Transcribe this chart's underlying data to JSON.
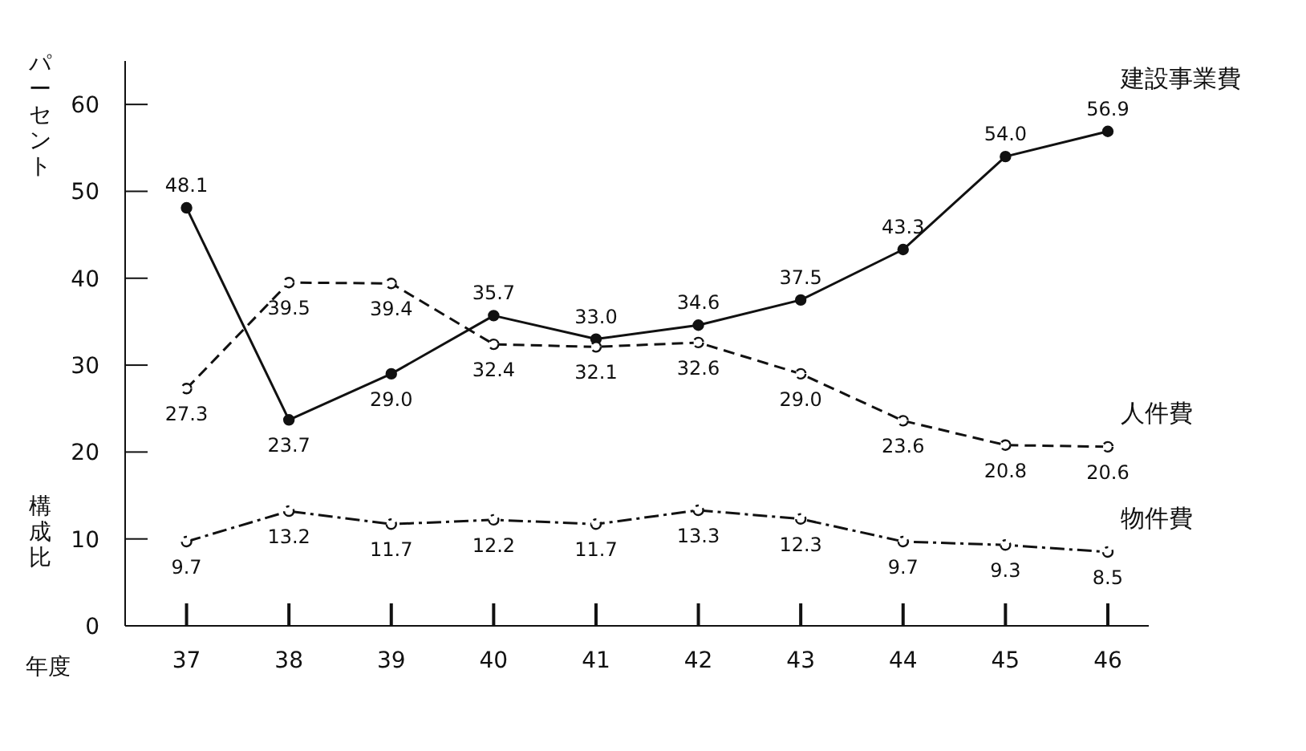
{
  "chart_data": {
    "type": "line",
    "ylabel": "構成比",
    "xlabel": "年度",
    "annotations": [
      "パーセント"
    ],
    "categories": [
      "37",
      "38",
      "39",
      "40",
      "41",
      "42",
      "43",
      "44",
      "45",
      "46"
    ],
    "series": [
      {
        "name": "建設事業費",
        "color": "#111111",
        "line_style": "solid",
        "values": [
          48.1,
          23.7,
          29.0,
          35.7,
          33.0,
          34.6,
          37.5,
          43.3,
          54.0,
          56.9
        ],
        "value_labels": [
          "48.1",
          "23.7",
          "29.0",
          "35.7",
          "33.0",
          "34.6",
          "37.5",
          "43.3",
          "54.0",
          "56.9"
        ]
      },
      {
        "name": "人件費",
        "color": "#111111",
        "line_style": "dashed",
        "values": [
          27.3,
          39.5,
          39.4,
          32.4,
          32.1,
          32.6,
          29.0,
          23.6,
          20.8,
          20.6
        ],
        "value_labels": [
          "27.3",
          "39.5",
          "39.4",
          "32.4",
          "32.1",
          "32.6",
          "29.0",
          "23.6",
          "20.8",
          "20.6"
        ]
      },
      {
        "name": "物件費",
        "color": "#111111",
        "line_style": "dotted",
        "values": [
          9.7,
          13.2,
          11.7,
          12.2,
          11.7,
          13.3,
          12.3,
          9.7,
          9.3,
          8.5
        ],
        "value_labels": [
          "9.7",
          "13.2",
          "11.7",
          "12.2",
          "11.7",
          "13.3",
          "12.3",
          "9.7",
          "9.3",
          "8.5"
        ]
      }
    ],
    "ylim": [
      0,
      65
    ],
    "yticks": [
      0,
      10,
      20,
      30,
      40,
      50,
      60
    ],
    "marker": "circle",
    "grid": false,
    "legend": false
  }
}
